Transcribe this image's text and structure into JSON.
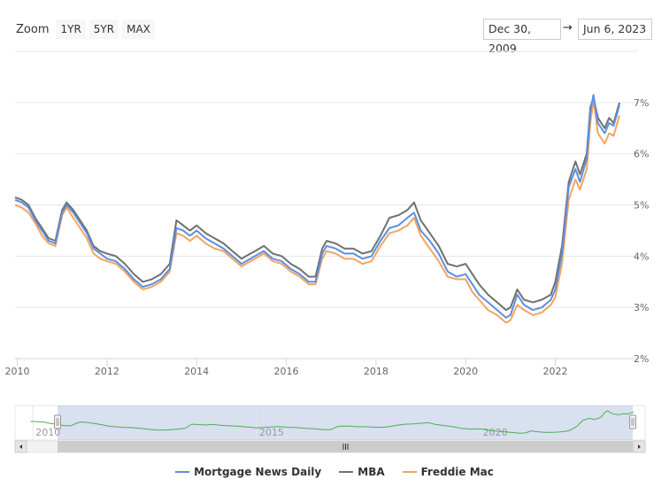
{
  "toolbar": {
    "zoom_label": "Zoom",
    "buttons": [
      "1YR",
      "5YR",
      "MAX"
    ],
    "range_from": "Dec 30, 2009",
    "range_separator": "→",
    "range_to": "Jun 6, 2023"
  },
  "navigator": {
    "labels": [
      "2010",
      "2015",
      "2020"
    ],
    "line_color": "#4caf50"
  },
  "chart_data": {
    "type": "line",
    "title": "",
    "xlabel": "",
    "ylabel": "",
    "xlim": [
      2009.95,
      2023.45
    ],
    "ylim": [
      2,
      8
    ],
    "x_ticks": [
      "2010",
      "2012",
      "2014",
      "2016",
      "2018",
      "2020",
      "2022"
    ],
    "y_ticks": [
      "2%",
      "3%",
      "4%",
      "5%",
      "6%",
      "7%"
    ],
    "grid": true,
    "legend_position": "bottom",
    "x": [
      2009.95,
      2010.1,
      2010.25,
      2010.4,
      2010.55,
      2010.7,
      2010.85,
      2011.0,
      2011.1,
      2011.25,
      2011.4,
      2011.55,
      2011.7,
      2011.85,
      2012.0,
      2012.2,
      2012.4,
      2012.6,
      2012.8,
      2013.0,
      2013.2,
      2013.4,
      2013.55,
      2013.7,
      2013.85,
      2014.0,
      2014.2,
      2014.4,
      2014.6,
      2014.8,
      2015.0,
      2015.1,
      2015.3,
      2015.5,
      2015.7,
      2015.9,
      2016.1,
      2016.3,
      2016.5,
      2016.65,
      2016.8,
      2016.9,
      2017.1,
      2017.3,
      2017.5,
      2017.7,
      2017.9,
      2018.1,
      2018.3,
      2018.5,
      2018.7,
      2018.85,
      2019.0,
      2019.2,
      2019.4,
      2019.6,
      2019.8,
      2020.0,
      2020.15,
      2020.3,
      2020.5,
      2020.7,
      2020.9,
      2021.0,
      2021.15,
      2021.3,
      2021.5,
      2021.7,
      2021.9,
      2022.0,
      2022.15,
      2022.3,
      2022.45,
      2022.55,
      2022.7,
      2022.78,
      2022.85,
      2022.95,
      2023.1,
      2023.2,
      2023.3,
      2023.43
    ],
    "series": [
      {
        "name": "Mortgage News Daily",
        "color": "#5b8fe0",
        "values": [
          5.1,
          5.05,
          4.95,
          4.7,
          4.5,
          4.3,
          4.25,
          4.85,
          5.0,
          4.85,
          4.65,
          4.45,
          4.15,
          4.05,
          3.95,
          3.9,
          3.75,
          3.55,
          3.4,
          3.45,
          3.55,
          3.75,
          4.55,
          4.5,
          4.4,
          4.5,
          4.35,
          4.25,
          4.15,
          4.0,
          3.85,
          3.9,
          4.0,
          4.1,
          3.95,
          3.9,
          3.75,
          3.65,
          3.5,
          3.5,
          4.05,
          4.2,
          4.15,
          4.05,
          4.05,
          3.95,
          4.0,
          4.3,
          4.55,
          4.6,
          4.75,
          4.85,
          4.5,
          4.3,
          4.05,
          3.7,
          3.6,
          3.65,
          3.45,
          3.25,
          3.1,
          2.95,
          2.8,
          2.85,
          3.25,
          3.05,
          2.95,
          3.0,
          3.15,
          3.35,
          4.05,
          5.35,
          5.7,
          5.45,
          5.9,
          6.8,
          7.15,
          6.6,
          6.4,
          6.6,
          6.55,
          6.95
        ]
      },
      {
        "name": "MBA",
        "color": "#707070",
        "values": [
          5.15,
          5.1,
          5.0,
          4.75,
          4.55,
          4.35,
          4.3,
          4.9,
          5.05,
          4.9,
          4.7,
          4.5,
          4.2,
          4.1,
          4.05,
          4.0,
          3.85,
          3.65,
          3.5,
          3.55,
          3.65,
          3.85,
          4.7,
          4.6,
          4.5,
          4.6,
          4.45,
          4.35,
          4.25,
          4.1,
          3.95,
          4.0,
          4.1,
          4.2,
          4.05,
          4.0,
          3.85,
          3.75,
          3.6,
          3.6,
          4.15,
          4.3,
          4.25,
          4.15,
          4.15,
          4.05,
          4.1,
          4.4,
          4.75,
          4.8,
          4.9,
          5.05,
          4.7,
          4.45,
          4.2,
          3.85,
          3.8,
          3.85,
          3.65,
          3.45,
          3.25,
          3.1,
          2.95,
          3.0,
          3.35,
          3.15,
          3.1,
          3.15,
          3.25,
          3.5,
          4.2,
          5.45,
          5.85,
          5.6,
          6.0,
          6.9,
          7.1,
          6.7,
          6.5,
          6.7,
          6.6,
          7.0
        ]
      },
      {
        "name": "Freddie Mac",
        "color": "#f4a460",
        "values": [
          5.0,
          4.95,
          4.85,
          4.65,
          4.4,
          4.25,
          4.2,
          4.8,
          4.95,
          4.75,
          4.55,
          4.35,
          4.05,
          3.95,
          3.9,
          3.85,
          3.7,
          3.5,
          3.35,
          3.4,
          3.5,
          3.7,
          4.45,
          4.4,
          4.3,
          4.4,
          4.25,
          4.15,
          4.1,
          3.95,
          3.8,
          3.85,
          3.95,
          4.05,
          3.9,
          3.85,
          3.7,
          3.6,
          3.45,
          3.45,
          3.95,
          4.1,
          4.05,
          3.95,
          3.95,
          3.85,
          3.9,
          4.2,
          4.45,
          4.5,
          4.6,
          4.75,
          4.4,
          4.15,
          3.9,
          3.6,
          3.55,
          3.55,
          3.3,
          3.15,
          2.95,
          2.85,
          2.7,
          2.75,
          3.05,
          2.95,
          2.85,
          2.9,
          3.05,
          3.2,
          3.85,
          5.1,
          5.5,
          5.3,
          5.7,
          6.6,
          7.05,
          6.4,
          6.2,
          6.4,
          6.35,
          6.75
        ]
      }
    ]
  }
}
